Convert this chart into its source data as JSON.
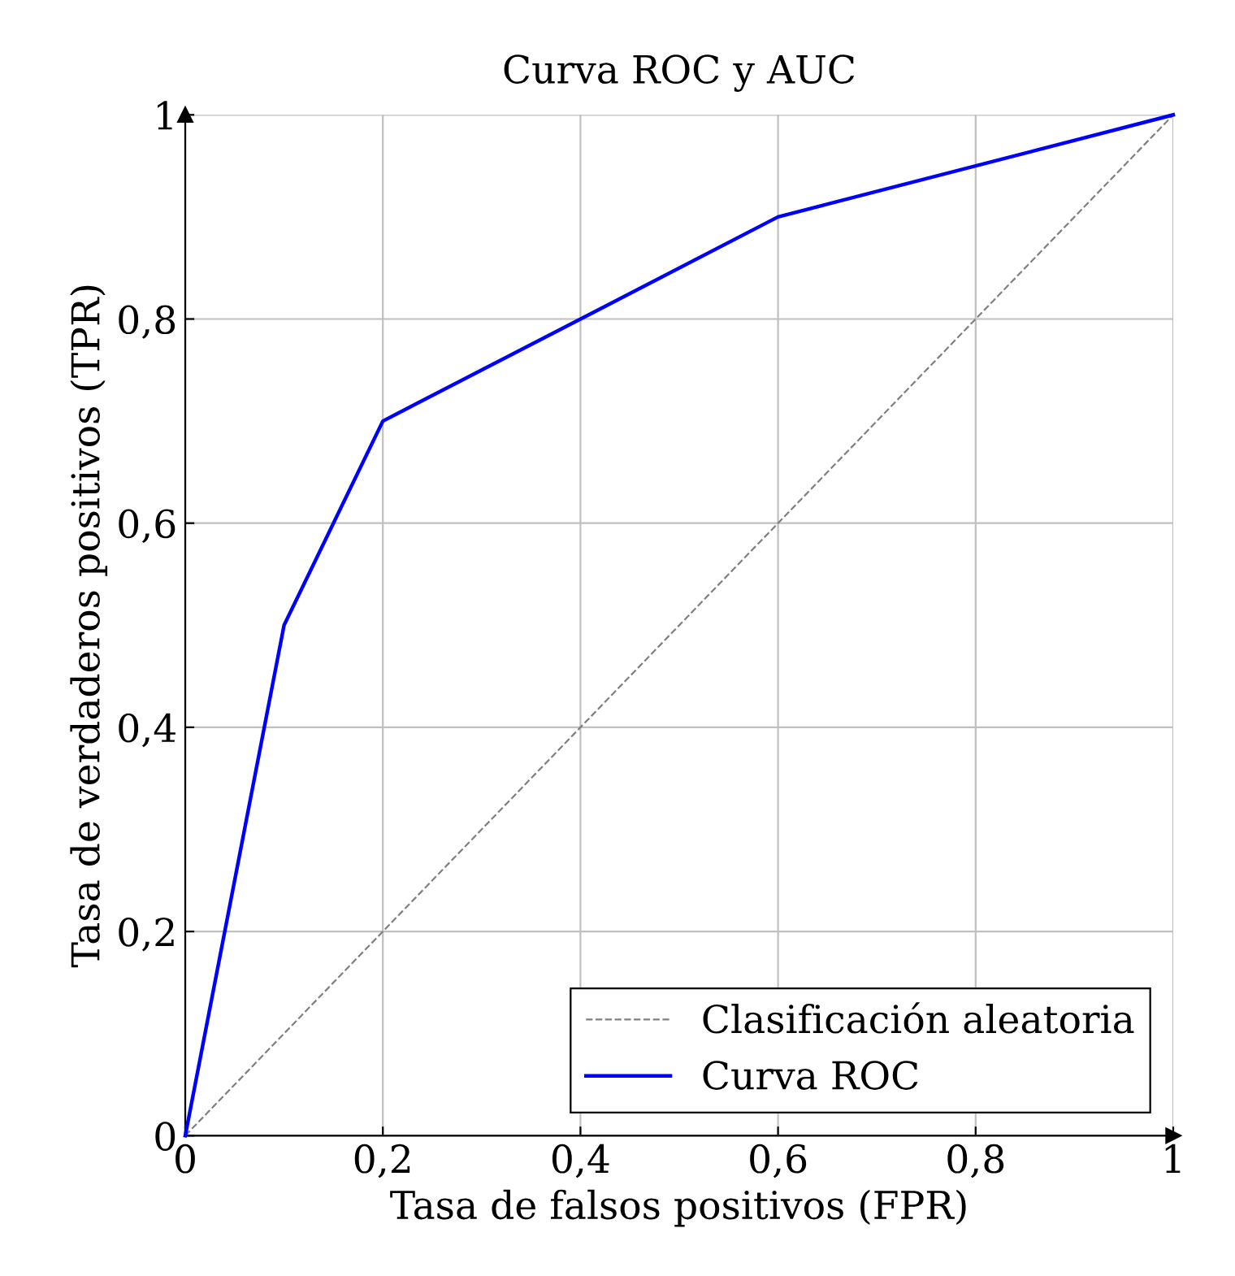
{
  "chart_data": {
    "type": "line",
    "title": "Curva ROC y AUC",
    "xlabel": "Tasa de falsos positivos (FPR)",
    "ylabel": "Tasa de verdaderos positivos (TPR)",
    "series": [
      {
        "name": "Clasificación aleatoria",
        "color": "#808080",
        "line_style": "dashed",
        "x": [
          0,
          1
        ],
        "values": [
          0,
          1
        ]
      },
      {
        "name": "Curva ROC",
        "color": "#0000ff",
        "line_style": "solid",
        "x": [
          0,
          0.1,
          0.2,
          0.6,
          1
        ],
        "values": [
          0,
          0.5,
          0.7,
          0.9,
          1
        ]
      }
    ],
    "xlim": [
      0,
      1
    ],
    "ylim": [
      0,
      1
    ],
    "xticks": [
      0,
      {
        "value": 0.2,
        "label": "0,2"
      },
      {
        "value": 0.4,
        "label": "0,4"
      },
      {
        "value": 0.6,
        "label": "0,6"
      },
      {
        "value": 0.8,
        "label": "0,8"
      },
      1
    ],
    "yticks": [
      0,
      {
        "value": 0.2,
        "label": "0,2"
      },
      {
        "value": 0.4,
        "label": "0,4"
      },
      {
        "value": 0.6,
        "label": "0,6"
      },
      {
        "value": 0.8,
        "label": "0,8"
      },
      1
    ],
    "grid": true,
    "legend": "bottom right",
    "marker": "none"
  }
}
